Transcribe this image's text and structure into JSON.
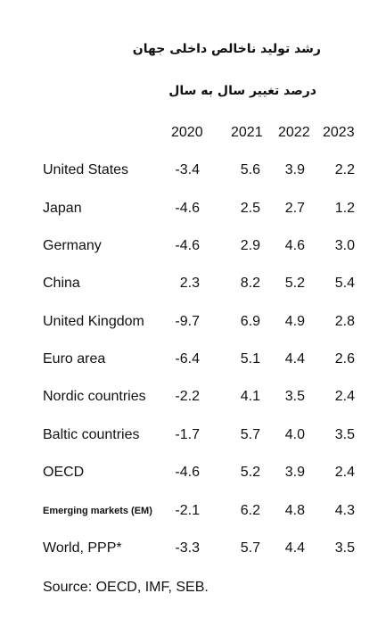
{
  "title": "رشد تولید ناخالص داخلی جهان",
  "subtitle": "درصد تغییر سال به سال",
  "years": [
    "2020",
    "2021",
    "2022",
    "2023"
  ],
  "rows": [
    {
      "label": "United States",
      "values": [
        "-3.4",
        "5.6",
        "3.9",
        "2.2"
      ]
    },
    {
      "label": "Japan",
      "values": [
        "-4.6",
        "2.5",
        "2.7",
        "1.2"
      ]
    },
    {
      "label": "Germany",
      "values": [
        "-4.6",
        "2.9",
        "4.6",
        "3.0"
      ]
    },
    {
      "label": "China",
      "values": [
        "2.3",
        "8.2",
        "5.2",
        "5.4"
      ]
    },
    {
      "label": "United Kingdom",
      "values": [
        "-9.7",
        "6.9",
        "4.9",
        "2.8"
      ]
    },
    {
      "label": "Euro area",
      "values": [
        "-6.4",
        "5.1",
        "4.4",
        "2.6"
      ]
    },
    {
      "label": "Nordic countries",
      "values": [
        "-2.2",
        "4.1",
        "3.5",
        "2.4"
      ]
    },
    {
      "label": "Baltic countries",
      "values": [
        "-1.7",
        "5.7",
        "4.0",
        "3.5"
      ]
    },
    {
      "label": "OECD",
      "values": [
        "-4.6",
        "5.2",
        "3.9",
        "2.4"
      ]
    },
    {
      "label": "Emerging markets (EM)",
      "values": [
        "-2.1",
        "6.2",
        "4.8",
        "4.3"
      ]
    },
    {
      "label": "World, PPP*",
      "values": [
        "-3.3",
        "5.7",
        "4.4",
        "3.5"
      ]
    }
  ],
  "source": "Source: OECD, IMF, SEB."
}
